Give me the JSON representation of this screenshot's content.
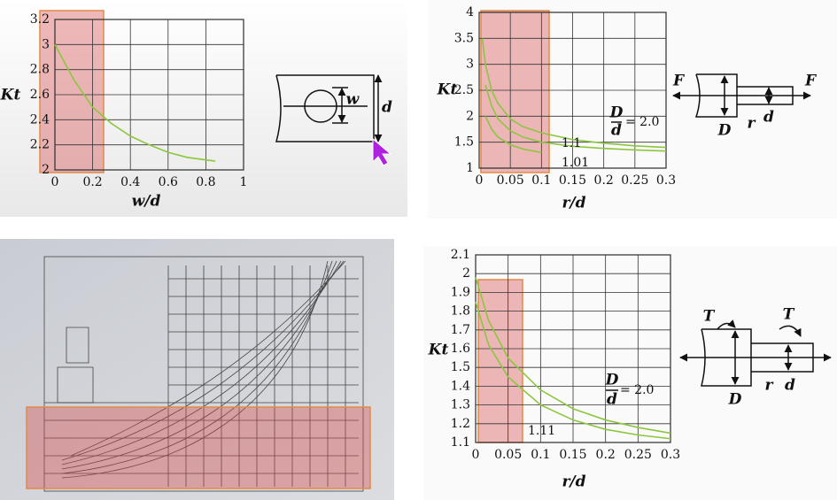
{
  "chart_data": [
    {
      "type": "line",
      "xlabel": "w/d",
      "ylabel": "Kt",
      "x": [
        0,
        0.1,
        0.2,
        0.3,
        0.4,
        0.5,
        0.6,
        0.7,
        0.8,
        0.85
      ],
      "values": [
        3.0,
        2.72,
        2.5,
        2.37,
        2.27,
        2.2,
        2.14,
        2.1,
        2.08,
        2.07
      ],
      "color": "#8cc63f",
      "xlim": [
        0,
        1
      ],
      "ylim": [
        2,
        3.2
      ],
      "xticks": [
        0,
        0.2,
        0.4,
        0.6,
        0.8,
        1
      ],
      "yticks": [
        2,
        2.2,
        2.4,
        2.6,
        2.8,
        3,
        3.2
      ],
      "grid": true,
      "annotations": [
        "w",
        "d"
      ]
    },
    {
      "type": "line",
      "xlabel": "r/d",
      "ylabel": "Kt",
      "x": [
        0.005,
        0.01,
        0.02,
        0.03,
        0.05,
        0.07,
        0.1,
        0.15,
        0.2,
        0.25,
        0.3
      ],
      "series": [
        {
          "name": "= 2.0",
          "color": "#8cc63f",
          "values": [
            3.5,
            3.0,
            2.5,
            2.25,
            1.95,
            1.8,
            1.68,
            1.55,
            1.48,
            1.43,
            1.4
          ]
        },
        {
          "name": "1.1",
          "color": "#8cc63f",
          "values": [
            null,
            2.6,
            2.2,
            1.95,
            1.72,
            1.6,
            1.5,
            1.42,
            1.38,
            1.35,
            1.33
          ]
        },
        {
          "name": "1.01",
          "color": "#8cc63f",
          "values": [
            null,
            2.0,
            1.75,
            1.6,
            1.45,
            1.37,
            1.3,
            null,
            null,
            null,
            null
          ]
        }
      ],
      "xlim": [
        0,
        0.3
      ],
      "ylim": [
        1,
        4
      ],
      "xticks": [
        0,
        0.05,
        0.1,
        0.15,
        0.2,
        0.25,
        0.3
      ],
      "yticks": [
        1,
        1.5,
        2,
        2.5,
        3,
        3.5,
        4
      ],
      "grid": true,
      "annotations": [
        "D",
        "d",
        "F",
        "F",
        "D",
        "r",
        "d"
      ]
    },
    {
      "type": "line",
      "xlabel": "r/d",
      "ylabel": "Kt",
      "x": [
        0,
        0.02,
        0.05,
        0.1,
        0.15,
        0.2,
        0.25,
        0.3
      ],
      "series": [
        {
          "name": "= 2.0",
          "color": "#8cc63f",
          "values": [
            1.98,
            1.75,
            1.55,
            1.38,
            1.28,
            1.22,
            1.18,
            1.15
          ]
        },
        {
          "name": "1.11",
          "color": "#8cc63f",
          "values": [
            1.85,
            1.62,
            1.45,
            1.3,
            1.22,
            1.17,
            1.14,
            1.12
          ]
        }
      ],
      "xlim": [
        0,
        0.3
      ],
      "ylim": [
        1.1,
        2.1
      ],
      "xticks": [
        0,
        0.05,
        0.1,
        0.15,
        0.2,
        0.25,
        0.3
      ],
      "yticks": [
        1.1,
        1.2,
        1.3,
        1.4,
        1.5,
        1.6,
        1.7,
        1.8,
        1.9,
        2,
        2.1
      ],
      "grid": true,
      "annotations": [
        "D",
        "d",
        "T",
        "T",
        "D",
        "r",
        "d"
      ]
    }
  ]
}
